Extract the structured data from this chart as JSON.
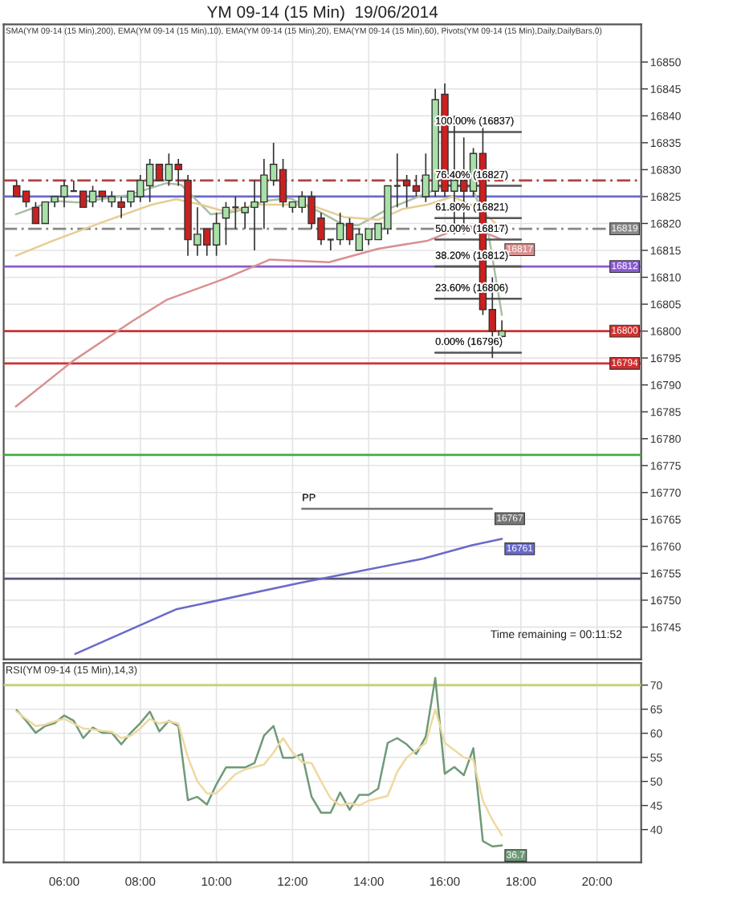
{
  "chart_data": [
    {
      "type": "candlestick",
      "title": "YM 09-14 (15 Min)  19/06/2014",
      "subtitle": "SMA(YM 09-14 (15 Min),200), EMA(YM 09-14 (15 Min),10), EMA(YM 09-14 (15 Min),20), EMA(YM 09-14 (15 Min),60), Pivots(YM 09-14 (15 Min),Daily,DailyBars,0)",
      "x": [
        4.75,
        5,
        5.25,
        5.5,
        5.75,
        6,
        6.25,
        6.5,
        6.75,
        7,
        7.25,
        7.5,
        7.75,
        8,
        8.25,
        8.5,
        8.75,
        9,
        9.25,
        9.5,
        9.75,
        10,
        10.25,
        10.5,
        10.75,
        11,
        11.25,
        11.5,
        11.75,
        12,
        12.25,
        12.5,
        12.75,
        13,
        13.25,
        13.5,
        13.75,
        14,
        14.25,
        14.5,
        14.75,
        15,
        15.25,
        15.5,
        15.75,
        16,
        16.25,
        16.5,
        16.75,
        17,
        17.25,
        17.5
      ],
      "ohlc": [
        [
          16827,
          16828,
          16825,
          16825
        ],
        [
          16826,
          16826,
          16823,
          16824
        ],
        [
          16823,
          16824,
          16820,
          16820
        ],
        [
          16820,
          16824,
          16820,
          16824
        ],
        [
          16824,
          16825,
          16823,
          16825
        ],
        [
          16825,
          16828,
          16823,
          16827
        ],
        [
          16826,
          16828,
          16826,
          16826
        ],
        [
          16826,
          16826,
          16823,
          16823
        ],
        [
          16824,
          16827,
          16823,
          16826
        ],
        [
          16826,
          16826,
          16824,
          16825
        ],
        [
          16824,
          16826,
          16823,
          16825
        ],
        [
          16824,
          16825,
          16821,
          16823
        ],
        [
          16824,
          16826,
          16823,
          16826
        ],
        [
          16825,
          16829,
          16824,
          16828
        ],
        [
          16827,
          16832,
          16824,
          16831
        ],
        [
          16831,
          16831,
          16828,
          16828
        ],
        [
          16828,
          16833,
          16827,
          16831
        ],
        [
          16831,
          16832,
          16827,
          16830
        ],
        [
          16828,
          16829,
          16814,
          16817
        ],
        [
          16816,
          16823,
          16814,
          16818
        ],
        [
          16819,
          16819,
          16814,
          16816
        ],
        [
          16816,
          16822,
          16814,
          16820
        ],
        [
          16821,
          16824,
          16816,
          16823
        ],
        [
          16823,
          16825,
          16819,
          16823
        ],
        [
          16822,
          16824,
          16819,
          16823
        ],
        [
          16823,
          16828,
          16815,
          16824
        ],
        [
          16824,
          16832,
          16819,
          16829
        ],
        [
          16828,
          16835,
          16827,
          16831
        ],
        [
          16830,
          16832,
          16823,
          16824
        ],
        [
          16823,
          16824,
          16822,
          16824
        ],
        [
          16823,
          16826,
          16822,
          16825
        ],
        [
          16825,
          16826,
          16819,
          16820
        ],
        [
          16821,
          16822,
          16816,
          16817
        ],
        [
          16817,
          16817,
          16815,
          16817
        ],
        [
          16817,
          16822,
          16816,
          16820
        ],
        [
          16820,
          16821,
          16816,
          16817
        ],
        [
          16815,
          16819,
          16815,
          16818
        ],
        [
          16817,
          16819,
          16816,
          16819
        ],
        [
          16817,
          16820,
          16817,
          16820
        ],
        [
          16819,
          16827,
          16818,
          16827
        ],
        [
          16827,
          16833,
          16823,
          16827
        ],
        [
          16828,
          16829,
          16823,
          16827
        ],
        [
          16827,
          16829,
          16825,
          16826
        ],
        [
          16825,
          16833,
          16824,
          16829
        ],
        [
          16826,
          16845,
          16825,
          16843
        ],
        [
          16844,
          16846,
          16825,
          16826
        ],
        [
          16826,
          16840,
          16818,
          16828
        ],
        [
          16828,
          16836,
          16818,
          16826
        ],
        [
          16826,
          16834,
          16825,
          16833
        ],
        [
          16833,
          16838,
          16803,
          16804
        ],
        [
          16804,
          16810,
          16795,
          16800
        ],
        [
          16799,
          16802,
          16797,
          16800
        ]
      ],
      "colors": [
        "#cc2020",
        "#cc2020",
        "#cc2020",
        "#a8e0a8",
        "#a8e0a8",
        "#a8e0a8",
        "#333333",
        "#cc2020",
        "#a8e0a8",
        "#cc2020",
        "#a8e0a8",
        "#cc2020",
        "#a8e0a8",
        "#a8e0a8",
        "#a8e0a8",
        "#cc2020",
        "#a8e0a8",
        "#cc2020",
        "#cc2020",
        "#a8e0a8",
        "#cc2020",
        "#a8e0a8",
        "#a8e0a8",
        "#333333",
        "#a8e0a8",
        "#a8e0a8",
        "#a8e0a8",
        "#a8e0a8",
        "#cc2020",
        "#a8e0a8",
        "#a8e0a8",
        "#cc2020",
        "#cc2020",
        "#333333",
        "#a8e0a8",
        "#cc2020",
        "#a8e0a8",
        "#a8e0a8",
        "#a8e0a8",
        "#a8e0a8",
        "#333333",
        "#cc2020",
        "#cc2020",
        "#a8e0a8",
        "#a8e0a8",
        "#cc2020",
        "#a8e0a8",
        "#cc2020",
        "#a8e0a8",
        "#cc2020",
        "#cc2020",
        "#a8e0a8"
      ],
      "series": [
        {
          "type": "line",
          "color": "#6a6ac8",
          "x": [
            6.29,
            8.94,
            12.18,
            15.42,
            16.71,
            17.5
          ],
          "values": [
            16740,
            16748.3,
            16753.2,
            16757.7,
            16760.2,
            16761.4
          ],
          "value_labels": [
            null,
            null,
            null,
            null,
            null,
            "16761"
          ]
        },
        {
          "type": "line",
          "color": "#a9bfa3",
          "x": [
            4.73,
            5.71,
            6.35,
            7.65,
            8.69,
            9.07,
            9.85,
            10.5,
            11.28,
            11.92,
            12.7,
            13.35,
            13.74,
            14.51,
            15.55,
            16.07,
            16.72,
            17.11,
            17.5
          ],
          "values": [
            16821.7,
            16824.2,
            16823.9,
            16825.2,
            16827.5,
            16827.2,
            16821.7,
            16822.2,
            16824.2,
            16824.7,
            16822.2,
            16819.7,
            16819.7,
            16822.7,
            16825.7,
            16827.2,
            16826.7,
            16819.7,
            16803
          ]
        },
        {
          "type": "line",
          "color": "#e6cd92",
          "x": [
            4.73,
            5.71,
            6.99,
            8.3,
            8.94,
            9.59,
            10.24,
            11.15,
            12.44,
            13.35,
            14.25,
            14.9,
            15.55,
            16.2,
            16.85,
            17.5
          ],
          "values": [
            16814,
            16816.8,
            16820.2,
            16823.5,
            16824.5,
            16823.5,
            16822.2,
            16823.5,
            16823.5,
            16821.2,
            16820.7,
            16822.7,
            16823.5,
            16825,
            16823,
            16819
          ]
        },
        {
          "type": "line",
          "color": "#d99090",
          "x": [
            4.73,
            6.22,
            7.78,
            8.69,
            10.24,
            11.41,
            12.96,
            14.25,
            15.55,
            16.59,
            17.5
          ],
          "values": [
            16786,
            16794.4,
            16801.8,
            16805.8,
            16809.8,
            16813.3,
            16812.8,
            16815.3,
            16816.8,
            16819.7,
            16817
          ],
          "value_labels": [
            null,
            null,
            null,
            null,
            null,
            null,
            null,
            null,
            null,
            null,
            "16817"
          ]
        },
        {
          "type": "line",
          "name": "100.00% (16837)",
          "color": "#555555",
          "x": [
            15.75,
            18.0
          ],
          "values": [
            16837,
            16837
          ]
        },
        {
          "type": "line",
          "name": "76.40% (16827)",
          "color": "#555555",
          "x": [
            15.75,
            18.0
          ],
          "values": [
            16827,
            16827
          ]
        },
        {
          "type": "line",
          "name": "61.80% (16821)",
          "color": "#555555",
          "x": [
            15.75,
            18.0
          ],
          "values": [
            16821,
            16821
          ]
        },
        {
          "type": "line",
          "name": "50.00% (16817)",
          "color": "#555555",
          "x": [
            15.75,
            18.0
          ],
          "values": [
            16817,
            16817
          ]
        },
        {
          "type": "line",
          "name": "38.20% (16812)",
          "color": "#555555",
          "x": [
            15.75,
            18.0
          ],
          "values": [
            16812,
            16812
          ]
        },
        {
          "type": "line",
          "name": "23.60% (16806)",
          "color": "#555555",
          "x": [
            15.75,
            18.0
          ],
          "values": [
            16806,
            16806
          ]
        },
        {
          "type": "line",
          "name": "0.00% (16796)",
          "color": "#555555",
          "x": [
            15.75,
            18.0
          ],
          "values": [
            16796,
            16796
          ]
        },
        {
          "type": "line",
          "name": "PP",
          "color": "#777777",
          "x": [
            12.25,
            17.24
          ],
          "values": [
            16767,
            16767
          ],
          "value_labels": [
            null,
            "16767"
          ]
        }
      ],
      "ref_lines": [
        {
          "axis": "y",
          "value": 16828,
          "color": "#b04040",
          "line_style": "dashed"
        },
        {
          "axis": "y",
          "value": 16825,
          "color": "#6a6ac8"
        },
        {
          "axis": "y",
          "value": 16819,
          "color": "#888888",
          "line_style": "dashed",
          "label": "16819"
        },
        {
          "axis": "y",
          "value": 16812,
          "color": "#8a5ad0",
          "label": "16812"
        },
        {
          "axis": "y",
          "value": 16800,
          "color": "#d03030",
          "label": "16800"
        },
        {
          "axis": "y",
          "value": 16794,
          "color": "#d03030",
          "label": "16794"
        },
        {
          "axis": "y",
          "value": 16777,
          "color": "#40b040"
        },
        {
          "axis": "y",
          "value": 16754,
          "color": "#555577"
        }
      ],
      "annotations": [
        "Time remaining = 00:11:52"
      ],
      "xlim": [
        4.41,
        21.16
      ],
      "xticks": [
        {
          "value": 6,
          "label": null
        },
        {
          "value": 8,
          "label": null
        },
        {
          "value": 10,
          "label": null
        },
        {
          "value": 12,
          "label": null
        },
        {
          "value": 14,
          "label": null
        },
        {
          "value": 16,
          "label": null
        },
        {
          "value": 18,
          "label": null
        },
        {
          "value": 20,
          "label": null
        }
      ],
      "ylim": [
        16739,
        16857
      ],
      "yticks": [
        16745,
        16750,
        16755,
        16760,
        16765,
        16770,
        16775,
        16780,
        16785,
        16790,
        16795,
        16800,
        16805,
        16810,
        16815,
        16820,
        16825,
        16830,
        16835,
        16840,
        16845,
        16850
      ],
      "tick_labels": "y",
      "grid": true
    },
    {
      "type": "line",
      "title": "RSI(YM 09-14 (15 Min),14,3)",
      "x": [
        4.75,
        5,
        5.25,
        5.5,
        5.75,
        6,
        6.25,
        6.5,
        6.75,
        7,
        7.25,
        7.5,
        7.75,
        8,
        8.25,
        8.5,
        8.75,
        9,
        9.25,
        9.5,
        9.75,
        10,
        10.25,
        10.5,
        10.75,
        11,
        11.25,
        11.5,
        11.75,
        12,
        12.25,
        12.5,
        12.75,
        13,
        13.25,
        13.5,
        13.75,
        14,
        14.25,
        14.5,
        14.75,
        15,
        15.25,
        15.5,
        15.75,
        16,
        16.25,
        16.5,
        16.75,
        17,
        17.25,
        17.5
      ],
      "series": [
        {
          "color": "#6f9a78",
          "values": [
            64.8,
            62.6,
            60.1,
            61.5,
            62.1,
            63.7,
            62.6,
            59.0,
            61.2,
            60.1,
            60.1,
            57.7,
            60.1,
            62.1,
            64.5,
            60.4,
            62.6,
            61.5,
            46.1,
            46.8,
            45.2,
            49.4,
            52.9,
            52.9,
            52.9,
            53.8,
            59.5,
            61.5,
            54.9,
            54.9,
            55.7,
            46.8,
            43.5,
            43.5,
            47.7,
            44.1,
            47.2,
            47.2,
            48.5,
            58.0,
            59.0,
            57.7,
            55.7,
            59.3,
            71.5,
            51.6,
            53.0,
            51.3,
            56.9,
            37.6,
            36.5,
            36.7
          ],
          "value_labels": [
            null,
            null,
            null,
            null,
            null,
            null,
            null,
            null,
            null,
            null,
            null,
            null,
            null,
            null,
            null,
            null,
            null,
            null,
            null,
            null,
            null,
            null,
            null,
            null,
            null,
            null,
            null,
            null,
            null,
            null,
            null,
            null,
            null,
            null,
            null,
            null,
            null,
            null,
            null,
            null,
            null,
            null,
            null,
            null,
            null,
            null,
            null,
            null,
            null,
            null,
            null,
            "36.7"
          ]
        },
        {
          "color": "#eed9a0",
          "values": [
            64.5,
            63,
            61.5,
            61.8,
            62.5,
            63,
            62,
            61,
            60.8,
            60.5,
            60.3,
            59,
            59.5,
            61,
            63,
            62,
            62.5,
            62,
            55,
            50,
            47.5,
            47.5,
            49.5,
            51.5,
            52.5,
            53,
            53.5,
            56,
            59,
            56,
            54,
            53.8,
            50,
            46.5,
            45,
            45.5,
            45,
            46,
            46.5,
            47,
            52,
            55,
            56.5,
            58,
            65,
            58,
            56.5,
            55,
            54.5,
            46,
            42,
            38.8
          ]
        }
      ],
      "ref_lines": [
        {
          "axis": "y",
          "value": 70,
          "color": "#c8d27a"
        }
      ],
      "xlim": [
        4.41,
        21.16
      ],
      "xticks": [
        {
          "value": 6,
          "label": "06:00"
        },
        {
          "value": 8,
          "label": "08:00"
        },
        {
          "value": 10,
          "label": "10:00"
        },
        {
          "value": 12,
          "label": "12:00"
        },
        {
          "value": 14,
          "label": "14:00"
        },
        {
          "value": 16,
          "label": "16:00"
        },
        {
          "value": 18,
          "label": "18:00"
        },
        {
          "value": 20,
          "label": "20:00"
        }
      ],
      "ylim": [
        33.2,
        74.6
      ],
      "yticks": [
        40,
        45,
        50,
        55,
        60,
        65,
        70
      ],
      "grid": true
    }
  ]
}
